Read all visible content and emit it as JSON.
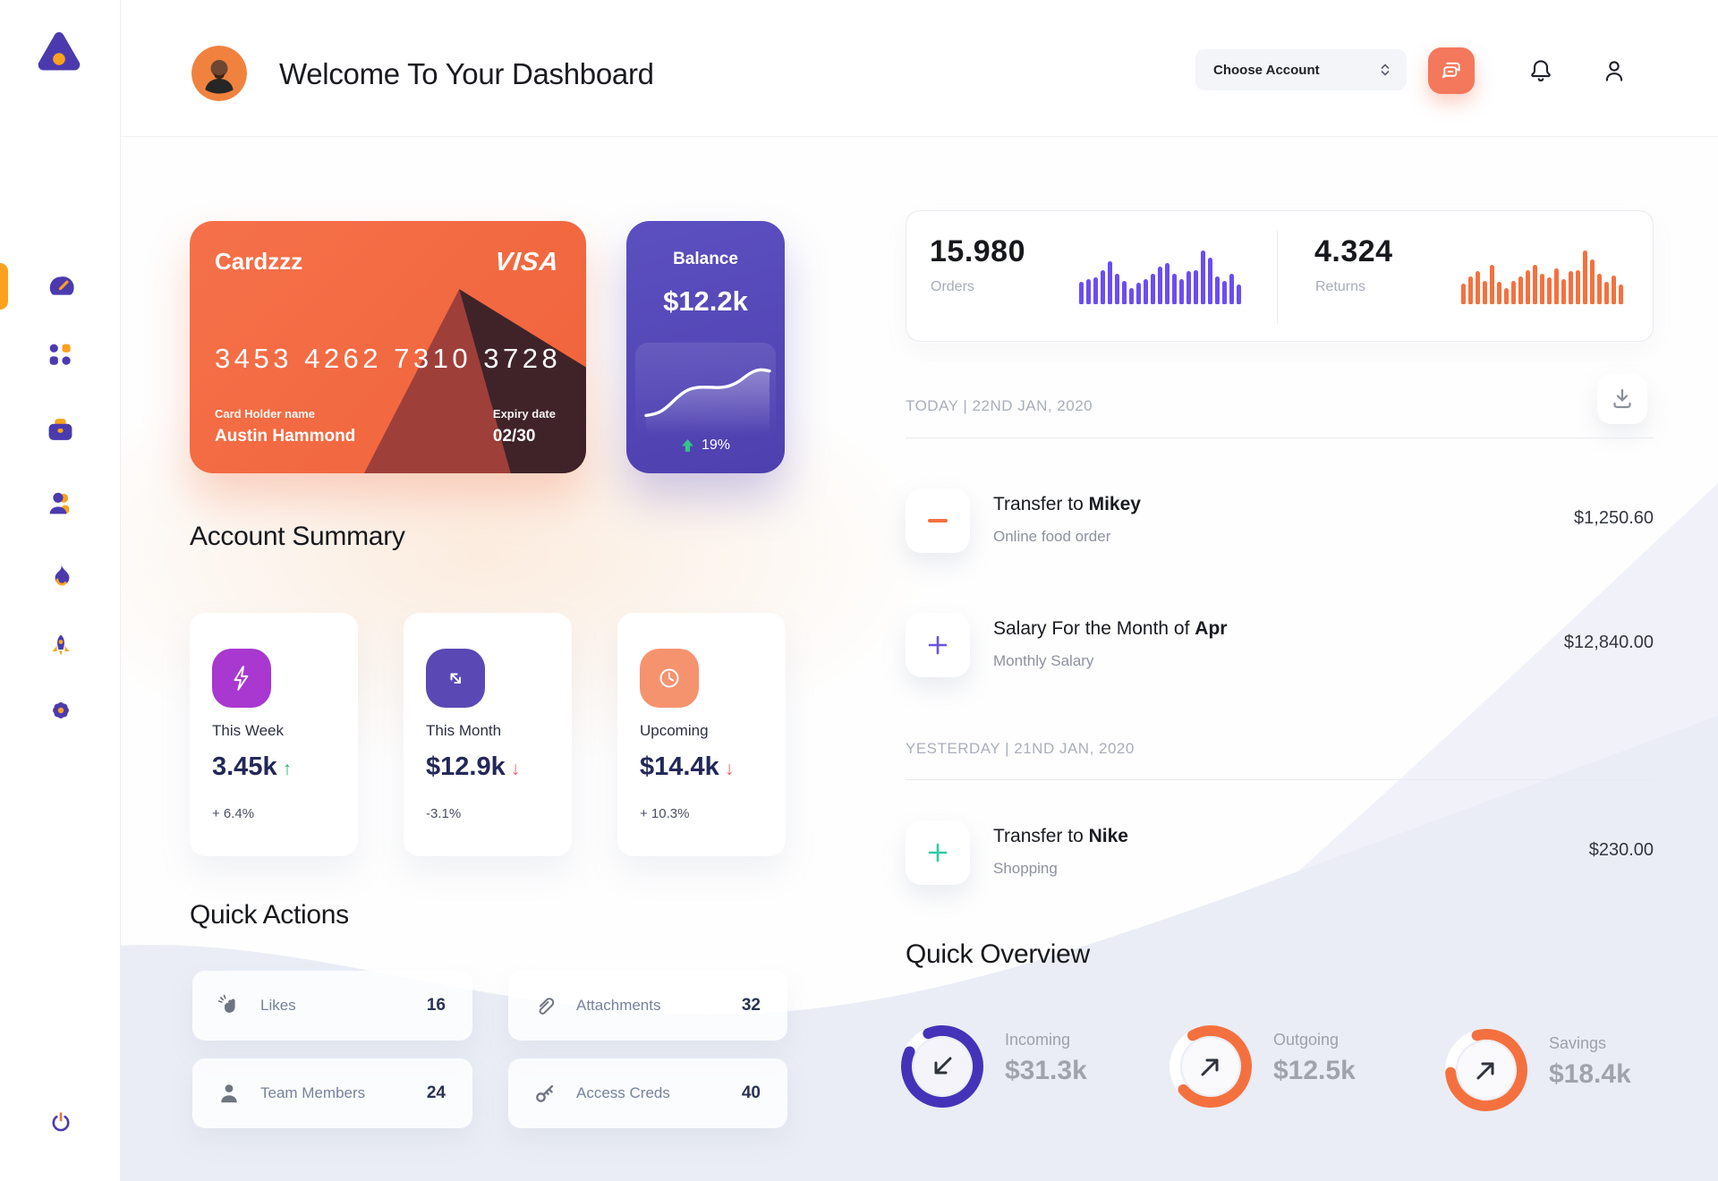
{
  "header": {
    "title": "Welcome To Your Dashboard",
    "account_dropdown_label": "Choose Account"
  },
  "sidebar": {
    "icons": [
      "dashboard-gauge",
      "apps-grid",
      "briefcase",
      "team",
      "flame",
      "rocket",
      "settings-gear",
      "power"
    ],
    "active_item": "dashboard-gauge"
  },
  "credit_card": {
    "name": "Cardzzz",
    "brand": "VISA",
    "number": "3453 4262 7310 3728",
    "holder_label": "Card Holder name",
    "holder_name": "Austin Hammond",
    "expiry_label": "Expiry date",
    "expiry": "02/30"
  },
  "balance_card": {
    "label": "Balance",
    "value": "$12.2k",
    "change": "19%"
  },
  "stats": {
    "orders": {
      "value": "15.980",
      "label": "Orders"
    },
    "returns": {
      "value": "4.324",
      "label": "Returns"
    }
  },
  "account_summary": {
    "title": "Account Summary",
    "cards": [
      {
        "label": "This Week",
        "value": "3.45k",
        "arrow": "↑",
        "arrow_color": "#2BB673",
        "percent": "+ 6.4%",
        "icon": "lightning-icon",
        "icon_color": "#A838CF"
      },
      {
        "label": "This Month",
        "value": "$12.9k",
        "arrow": "↓",
        "arrow_color": "#ED5E68",
        "percent": "-3.1%",
        "icon": "trend-arrows-icon",
        "icon_color": "#5A49B5"
      },
      {
        "label": "Upcoming",
        "value": "$14.4k",
        "arrow": "↓",
        "arrow_color": "#ED5E68",
        "percent": "+ 10.3%",
        "icon": "clock-icon",
        "icon_color": "#F5936F"
      }
    ]
  },
  "quick_actions": {
    "title": "Quick Actions",
    "items": [
      {
        "label": "Likes",
        "count": "16",
        "icon": "clap-icon"
      },
      {
        "label": "Attachments",
        "count": "32",
        "icon": "paperclip-icon"
      },
      {
        "label": "Team Members",
        "count": "24",
        "icon": "member-icon"
      },
      {
        "label": "Access Creds",
        "count": "40",
        "icon": "key-icon"
      }
    ]
  },
  "transactions": {
    "today_header": "TODAY | 22ND JAN, 2020",
    "yesterday_header": "YESTERDAY | 21ND JAN, 2020",
    "rows": [
      {
        "title_prefix": "Transfer to ",
        "title_bold": "Mikey",
        "subtitle": "Online food order",
        "amount": "$1,250.60",
        "sign": "minus",
        "sign_color": "#F4713F"
      },
      {
        "title_prefix": "Salary For the Month of ",
        "title_bold": "Apr",
        "subtitle": "Monthly Salary",
        "amount": "$12,840.00",
        "sign": "plus",
        "sign_color": "#6A52E0"
      },
      {
        "title_prefix": "Transfer to ",
        "title_bold": "Nike",
        "subtitle": "Shopping",
        "amount": "$230.00",
        "sign": "plus",
        "sign_color": "#2FCBA4"
      }
    ]
  },
  "quick_overview": {
    "title": "Quick Overview",
    "items": [
      {
        "label": "Incoming",
        "value": "$31.3k",
        "ring_chart": 3
      },
      {
        "label": "Outgoing",
        "value": "$12.5k",
        "ring_chart": 4
      },
      {
        "label": "Savings",
        "value": "$18.4k",
        "ring_chart": 5
      }
    ]
  },
  "colors": {
    "accent_orange": "#F4713F",
    "accent_purple": "#4B3AAE",
    "chat_button": "#F4785C",
    "nav_indicator": "#FAA21E",
    "value_navy": "#232858"
  },
  "chart_data": [
    {
      "type": "bar",
      "title": "Orders activity",
      "color": "#6A4DF4",
      "ylim": [
        0,
        1
      ],
      "values": [
        0.42,
        0.46,
        0.5,
        0.63,
        0.8,
        0.57,
        0.44,
        0.3,
        0.4,
        0.47,
        0.57,
        0.7,
        0.77,
        0.57,
        0.46,
        0.62,
        0.64,
        1.0,
        0.86,
        0.52,
        0.44,
        0.57,
        0.36
      ]
    },
    {
      "type": "bar",
      "title": "Returns activity",
      "color": "#F4713F",
      "ylim": [
        0,
        1
      ],
      "values": [
        0.38,
        0.52,
        0.62,
        0.44,
        0.74,
        0.42,
        0.3,
        0.44,
        0.52,
        0.64,
        0.74,
        0.57,
        0.5,
        0.67,
        0.47,
        0.62,
        0.64,
        1.0,
        0.84,
        0.57,
        0.42,
        0.54,
        0.36
      ]
    },
    {
      "type": "line",
      "title": "Balance trend sparkline",
      "color": "#FFFFFF",
      "ylim": [
        0,
        100
      ],
      "values": [
        12,
        14,
        24,
        40,
        52,
        56,
        56,
        55,
        57,
        64,
        77,
        84,
        81
      ]
    },
    {
      "type": "donut",
      "title": "Incoming ring",
      "percent": 88,
      "color": "#4433B8"
    },
    {
      "type": "donut",
      "title": "Outgoing ring",
      "percent": 72,
      "color": "#F4713F"
    },
    {
      "type": "donut",
      "title": "Savings ring",
      "percent": 78,
      "color": "#F4713F"
    }
  ]
}
